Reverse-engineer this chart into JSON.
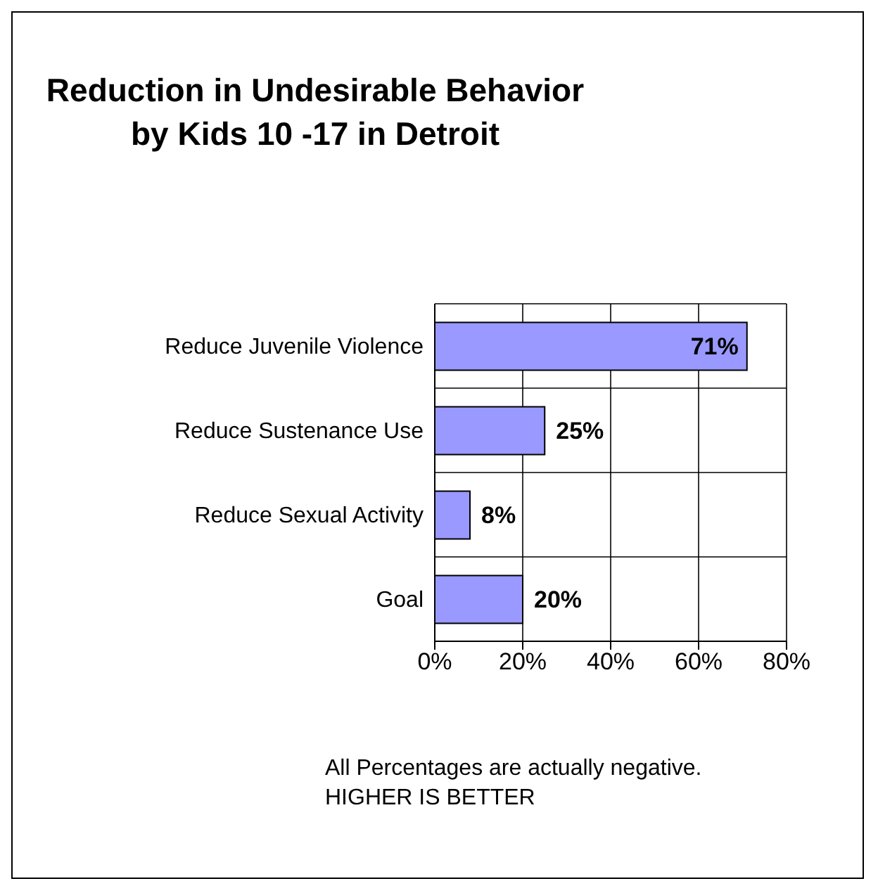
{
  "chart_data": {
    "type": "bar",
    "orientation": "horizontal",
    "title": "Reduction in Undesirable Behavior\nby Kids 10 -17 in Detroit",
    "categories": [
      "Reduce Juvenile Violence",
      "Reduce Sustenance Use",
      "Reduce Sexual Activity",
      "Goal"
    ],
    "values": [
      71,
      25,
      8,
      20
    ],
    "color": "#9999ff",
    "value_labels": [
      "71%",
      "25%",
      "8%",
      "20%"
    ],
    "xlim": [
      0,
      80
    ],
    "xticks": [
      {
        "value": 0,
        "label": "0%"
      },
      {
        "value": 20,
        "label": "20%"
      },
      {
        "value": 40,
        "label": "40%"
      },
      {
        "value": 60,
        "label": "60%"
      },
      {
        "value": 80,
        "label": "80%"
      }
    ],
    "grid": true,
    "legend": false,
    "annotations": [
      "All Percentages are actually negative.",
      "HIGHER IS BETTER"
    ]
  }
}
